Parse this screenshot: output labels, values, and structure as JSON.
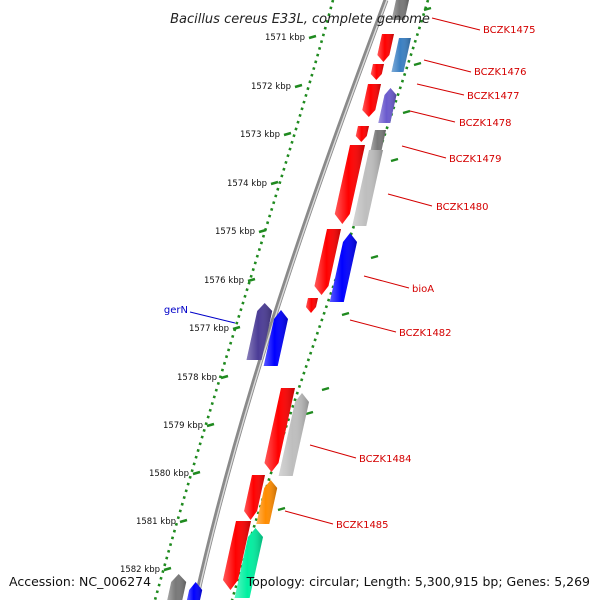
{
  "title": "Bacillus cereus E33L, complete genome",
  "footer": {
    "accession": "Accession: NC_006274",
    "summary": "Topology: circular; Length: 5,300,915 bp; Genes: 5,269"
  },
  "ticks": [
    "1571 kbp",
    "1572 kbp",
    "1573 kbp",
    "1574 kbp",
    "1575 kbp",
    "1576 kbp",
    "1577 kbp",
    "1578 kbp",
    "1579 kbp",
    "1580 kbp",
    "1581 kbp",
    "1582 kbp"
  ],
  "gene_labels": [
    "BCZK1475",
    "BCZK1476",
    "BCZK1477",
    "BCZK1478",
    "BCZK1479",
    "BCZK1480",
    "bioA",
    "BCZK1482",
    "BCZK1484",
    "BCZK1485"
  ],
  "outer_gene_label": "gerN",
  "colors": {
    "backbone": "#8a8a8a",
    "dots": "#1f8a1f",
    "tick": "#1f8a1f",
    "cds_red": "#ff0000",
    "label_red": "#d40000",
    "label_blue": "#0000c8",
    "blue": "#0000ff",
    "indigo": "#4b3c96",
    "steelblue": "#3a7fc2",
    "slateblue": "#6a5acd",
    "gray": "#bebebe",
    "darkgray": "#787878",
    "orange": "#ff8c00",
    "springgreen": "#00f0a0"
  }
}
